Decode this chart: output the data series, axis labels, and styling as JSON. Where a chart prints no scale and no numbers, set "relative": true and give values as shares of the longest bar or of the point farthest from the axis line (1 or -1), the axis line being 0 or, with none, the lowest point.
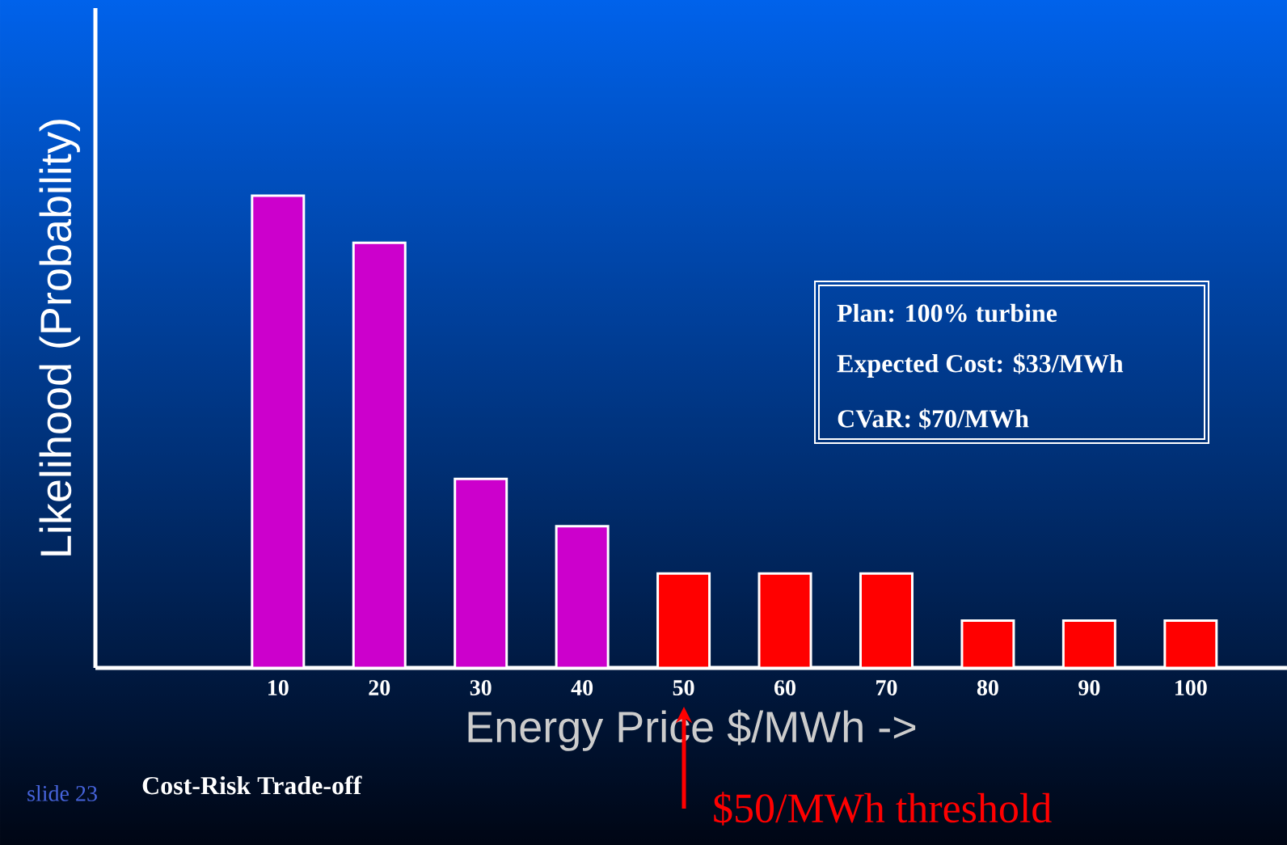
{
  "chart_data": {
    "type": "bar",
    "relative": true,
    "xlabel": "Energy Price $/MWh ->",
    "ylabel": "Likelihood (Probability)",
    "categories": [
      "10",
      "20",
      "30",
      "40",
      "50",
      "60",
      "70",
      "80",
      "90",
      "100"
    ],
    "values": [
      1,
      0.9,
      0.4,
      0.3,
      0.2,
      0.2,
      0.2,
      0.1,
      0.1,
      0.1
    ],
    "colors": [
      "#cc00cc",
      "#cc00cc",
      "#cc00cc",
      "#cc00cc",
      "#ff0000",
      "#ff0000",
      "#ff0000",
      "#ff0000",
      "#ff0000",
      "#ff0000"
    ],
    "annotations": [
      "Plan: 100% turbine",
      "Expected Cost: $33/MWh",
      "CVaR: $70/MWh",
      "$50/MWh threshold",
      "slide 23",
      "Cost-Risk Trade-off"
    ]
  }
}
